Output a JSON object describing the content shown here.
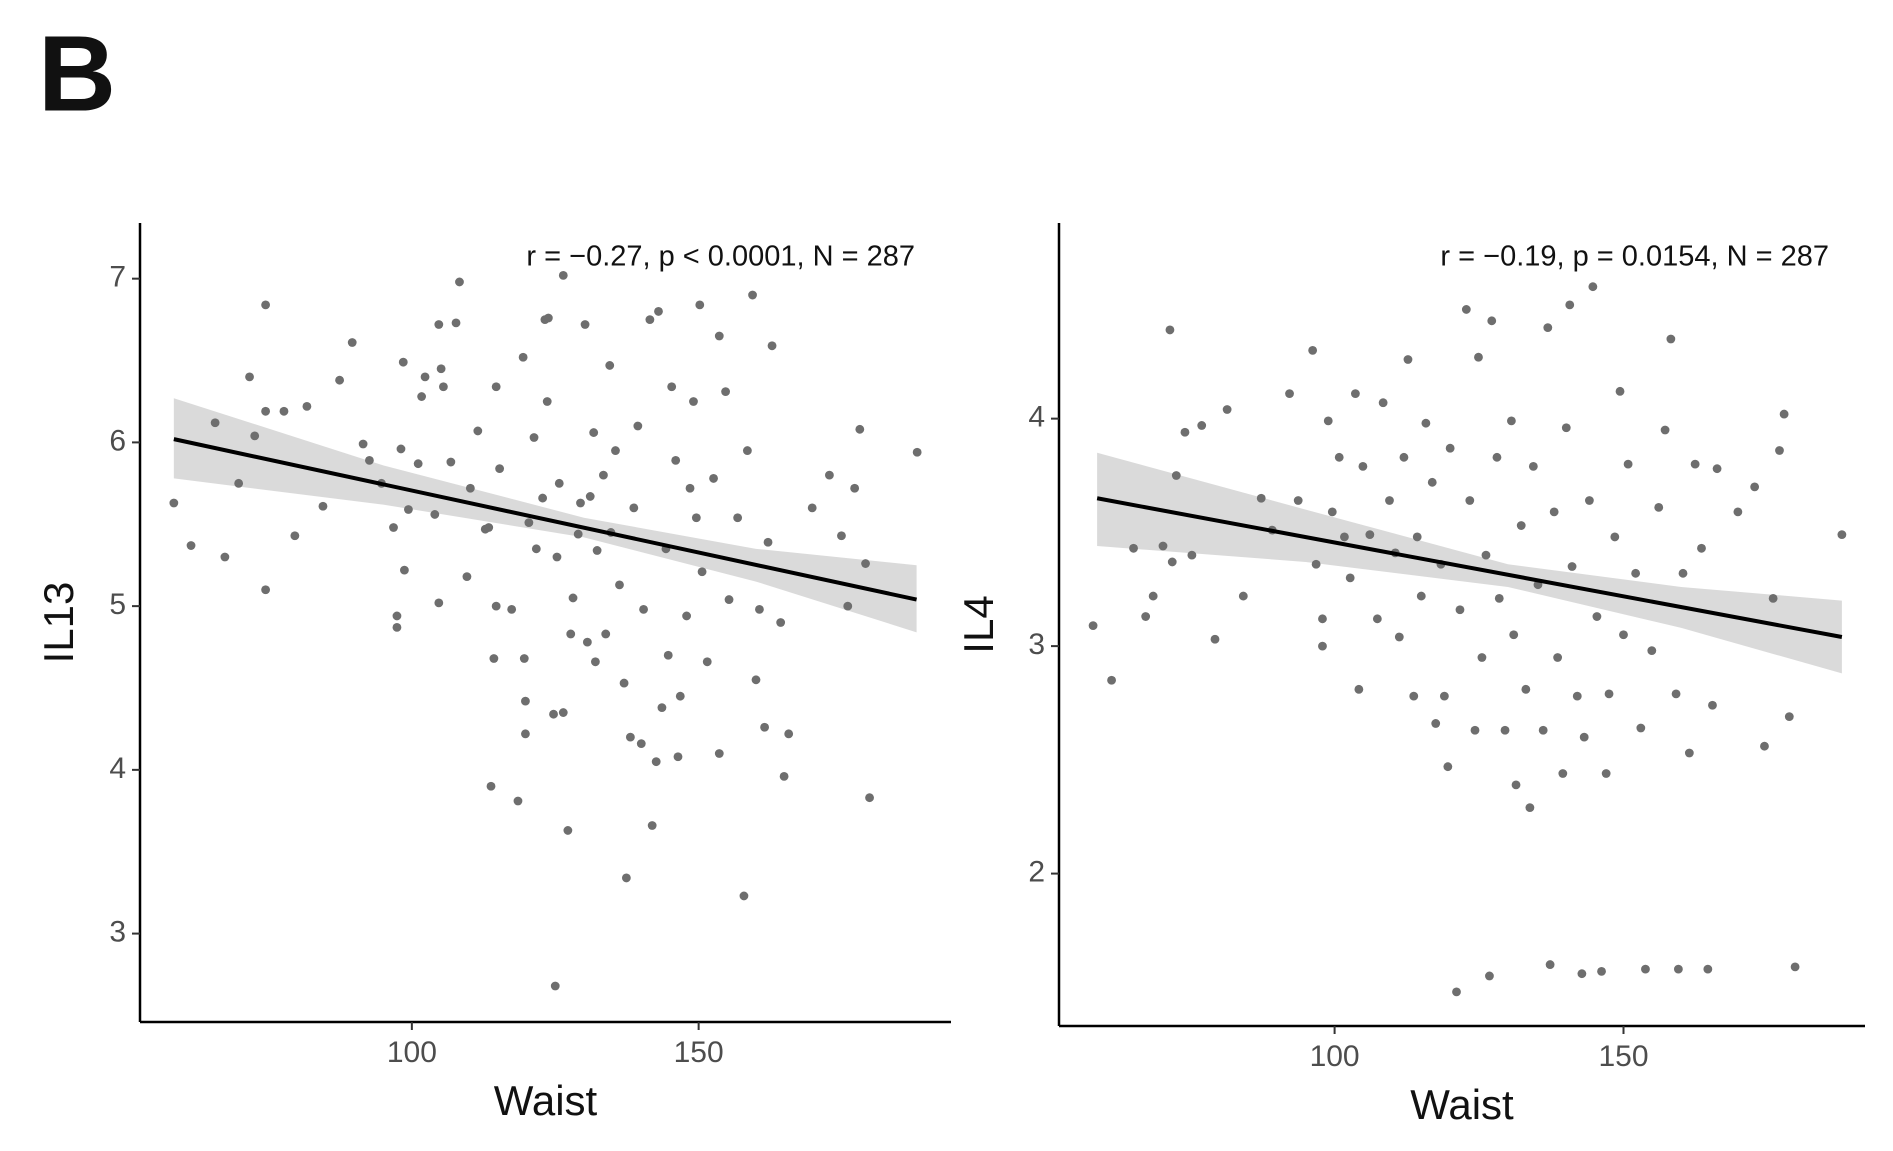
{
  "panel_label": "B",
  "chart_data": [
    {
      "type": "scatter",
      "annotation": "r = −0.27, p < 0.0001, N = 287",
      "xlabel": "Waist",
      "ylabel": "IL13",
      "xlim": [
        52.6,
        194
      ],
      "ylim": [
        2.46,
        7.34
      ],
      "xticks": [
        100,
        150
      ],
      "yticks": [
        3,
        4,
        5,
        6,
        7
      ],
      "color": "#6e6e6e",
      "fit_color": "#000000",
      "band_color": "#d3d3d3",
      "x": [
        58.5,
        61.5,
        65.7,
        67.4,
        69.8,
        71.7,
        72.6,
        74.5,
        74.5,
        74.5,
        77.7,
        79.6,
        81.7,
        84.5,
        87.4,
        89.6,
        91.5,
        92.6,
        94.7,
        96.8,
        97.4,
        97.4,
        98.1,
        98.5,
        98.7,
        99.4,
        101.1,
        101.7,
        102.3,
        104.0,
        104.7,
        104.7,
        105.1,
        105.5,
        106.8,
        107.7,
        108.3,
        109.6,
        110.2,
        111.5,
        112.8,
        113.4,
        113.8,
        114.3,
        114.7,
        114.7,
        115.3,
        117.4,
        118.5,
        119.4,
        119.6,
        119.8,
        119.8,
        120.4,
        121.3,
        121.7,
        122.8,
        123.2,
        123.6,
        123.8,
        124.7,
        125.0,
        125.3,
        125.7,
        126.4,
        126.4,
        127.2,
        127.7,
        128.1,
        129.0,
        129.4,
        130.2,
        130.6,
        131.1,
        131.7,
        132.0,
        132.3,
        133.4,
        133.8,
        134.5,
        134.7,
        135.5,
        136.2,
        137.0,
        137.4,
        138.1,
        138.7,
        139.4,
        140.0,
        140.4,
        141.5,
        141.9,
        142.6,
        143.0,
        143.6,
        144.3,
        144.7,
        145.3,
        146.0,
        146.4,
        146.8,
        147.9,
        148.5,
        149.1,
        149.6,
        150.2,
        150.6,
        151.5,
        152.6,
        153.6,
        153.6,
        154.7,
        155.3,
        156.8,
        157.9,
        158.5,
        159.4,
        160.0,
        160.6,
        161.5,
        162.1,
        162.8,
        164.3,
        164.9,
        165.7,
        169.8,
        172.8,
        174.9,
        176.0,
        177.2,
        178.1,
        179.1,
        179.8,
        188.1
      ],
      "y": [
        5.63,
        5.37,
        6.12,
        5.3,
        5.75,
        6.4,
        6.04,
        6.84,
        5.1,
        6.19,
        6.19,
        5.43,
        6.22,
        5.61,
        6.38,
        6.61,
        5.99,
        5.89,
        5.75,
        5.48,
        4.94,
        4.87,
        5.96,
        6.49,
        5.22,
        5.59,
        5.87,
        6.28,
        6.4,
        5.56,
        5.02,
        6.72,
        6.45,
        6.34,
        5.88,
        6.73,
        6.98,
        5.18,
        5.72,
        6.07,
        5.47,
        5.48,
        3.9,
        4.68,
        6.34,
        5.0,
        5.84,
        4.98,
        3.81,
        6.52,
        4.68,
        4.22,
        4.42,
        5.51,
        6.03,
        5.35,
        5.66,
        6.75,
        6.25,
        6.76,
        4.34,
        2.68,
        5.3,
        5.75,
        7.02,
        4.35,
        3.63,
        4.83,
        5.05,
        5.44,
        5.63,
        6.72,
        4.78,
        5.67,
        6.06,
        4.66,
        5.34,
        5.8,
        4.83,
        6.47,
        5.45,
        5.95,
        5.13,
        4.53,
        3.34,
        4.2,
        5.6,
        6.1,
        4.16,
        4.98,
        6.75,
        3.66,
        4.05,
        6.8,
        4.38,
        5.35,
        4.7,
        6.34,
        5.89,
        4.08,
        4.45,
        4.94,
        5.72,
        6.25,
        5.54,
        6.84,
        5.21,
        4.66,
        5.78,
        4.1,
        6.65,
        6.31,
        5.04,
        5.54,
        3.23,
        5.95,
        6.9,
        4.55,
        4.98,
        4.26,
        5.39,
        6.59,
        4.9,
        3.96,
        4.22,
        5.6,
        5.8,
        5.43,
        5.0,
        5.72,
        6.08,
        5.26,
        3.83,
        5.94
      ],
      "fit": {
        "x": [
          58.5,
          188
        ],
        "y": [
          6.02,
          5.04
        ]
      },
      "band": {
        "x": [
          58.5,
          95,
          130,
          160,
          188
        ],
        "upper": [
          6.27,
          5.86,
          5.54,
          5.35,
          5.25
        ],
        "lower": [
          5.78,
          5.62,
          5.42,
          5.15,
          4.84
        ]
      }
    },
    {
      "type": "scatter",
      "annotation": "r = −0.19, p = 0.0154, N = 287",
      "xlabel": "Waist",
      "ylabel": "IL4",
      "xlim": [
        52.3,
        191.8
      ],
      "ylim": [
        1.33,
        4.86
      ],
      "xticks": [
        100,
        150
      ],
      "yticks": [
        2,
        3,
        4
      ],
      "color": "#6e6e6e",
      "fit_color": "#000000",
      "band_color": "#d3d3d3",
      "x": [
        58.2,
        61.4,
        65.2,
        67.3,
        68.6,
        70.3,
        71.5,
        71.9,
        72.6,
        74.1,
        75.3,
        77.0,
        79.3,
        81.4,
        84.2,
        87.3,
        89.2,
        92.2,
        93.7,
        96.2,
        96.8,
        97.9,
        97.9,
        98.9,
        99.6,
        100.8,
        101.7,
        102.7,
        103.6,
        104.2,
        104.9,
        106.1,
        107.4,
        108.4,
        109.5,
        110.5,
        111.2,
        112.0,
        112.7,
        113.7,
        114.3,
        115.0,
        115.8,
        116.9,
        117.5,
        118.4,
        119.0,
        119.6,
        120.0,
        121.1,
        121.7,
        122.8,
        123.4,
        124.3,
        124.9,
        125.5,
        126.2,
        126.8,
        127.2,
        128.1,
        128.5,
        129.5,
        130.6,
        131.0,
        131.4,
        132.3,
        133.1,
        133.8,
        134.4,
        135.2,
        136.1,
        136.9,
        137.3,
        138.0,
        138.6,
        139.5,
        140.1,
        140.7,
        141.1,
        142.0,
        142.8,
        143.2,
        144.1,
        144.7,
        145.4,
        146.2,
        147.0,
        147.5,
        148.5,
        149.4,
        150.0,
        150.8,
        152.1,
        153.0,
        153.8,
        154.9,
        156.1,
        157.2,
        158.2,
        159.1,
        159.5,
        160.3,
        161.4,
        162.4,
        163.5,
        164.6,
        165.4,
        166.2,
        169.8,
        172.7,
        174.4,
        175.9,
        177.0,
        177.8,
        178.7,
        179.7,
        187.8
      ],
      "y": [
        3.09,
        2.85,
        3.43,
        3.13,
        3.22,
        3.44,
        4.39,
        3.37,
        3.75,
        3.94,
        3.4,
        3.97,
        3.03,
        4.04,
        3.22,
        3.65,
        3.51,
        4.11,
        3.64,
        4.3,
        3.36,
        3.12,
        3.0,
        3.99,
        3.59,
        3.83,
        3.48,
        3.3,
        4.11,
        2.81,
        3.79,
        3.49,
        3.12,
        4.07,
        3.64,
        3.41,
        3.04,
        3.83,
        4.26,
        2.78,
        3.48,
        3.22,
        3.98,
        3.72,
        2.66,
        3.36,
        2.78,
        2.47,
        3.87,
        1.48,
        3.16,
        4.48,
        3.64,
        2.63,
        4.27,
        2.95,
        3.4,
        1.55,
        4.43,
        3.83,
        3.21,
        2.63,
        3.99,
        3.05,
        2.39,
        3.53,
        2.81,
        2.29,
        3.79,
        3.27,
        2.63,
        4.4,
        1.6,
        3.59,
        2.95,
        2.44,
        3.96,
        4.5,
        3.35,
        2.78,
        1.56,
        2.6,
        3.64,
        4.58,
        3.13,
        1.57,
        2.44,
        2.79,
        3.48,
        4.12,
        3.05,
        3.8,
        3.32,
        2.64,
        1.58,
        2.98,
        3.61,
        3.95,
        4.35,
        2.79,
        1.58,
        3.32,
        2.53,
        3.8,
        3.43,
        1.58,
        2.74,
        3.78,
        3.59,
        3.7,
        2.56,
        3.21,
        3.86,
        4.02,
        2.69,
        1.59,
        3.49
      ],
      "fit": {
        "x": [
          58.9,
          187.8
        ],
        "y": [
          3.65,
          3.04
        ]
      },
      "band": {
        "x": [
          58.9,
          95,
          130,
          160,
          187.8
        ],
        "upper": [
          3.85,
          3.6,
          3.36,
          3.26,
          3.2
        ],
        "lower": [
          3.44,
          3.37,
          3.26,
          3.08,
          2.88
        ]
      }
    }
  ]
}
